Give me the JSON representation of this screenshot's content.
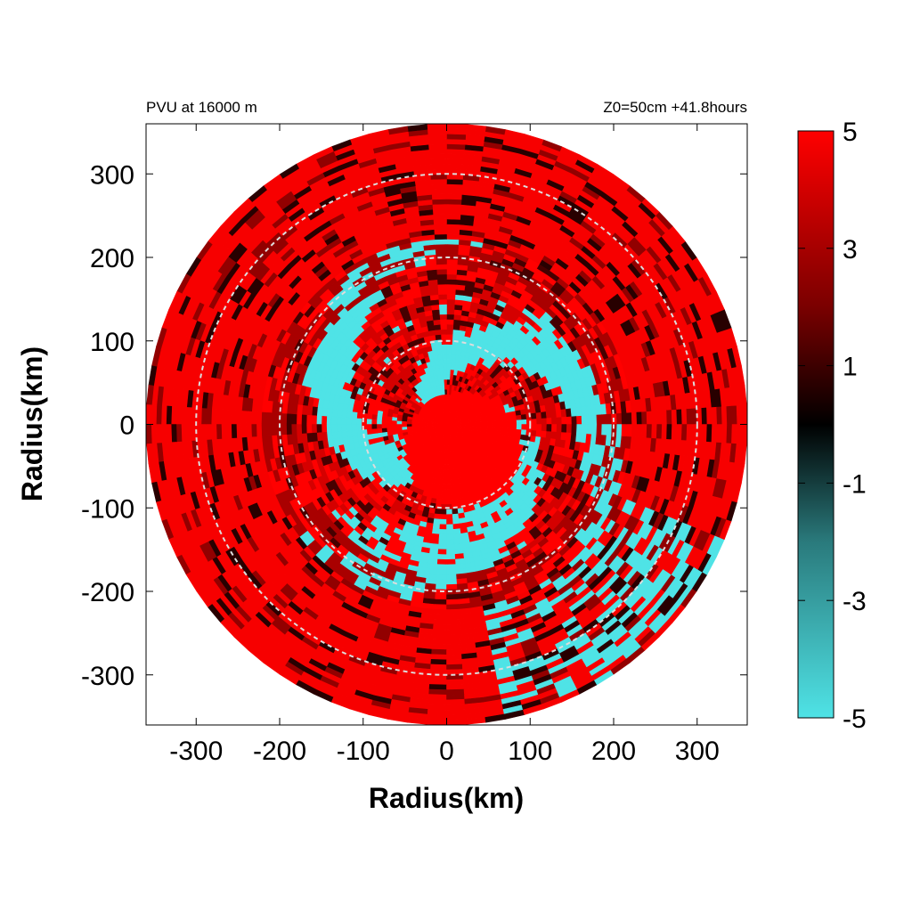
{
  "chart_data": {
    "type": "heatmap",
    "title_left": "PVU at 16000 m",
    "title_right": "Z0=50cm  +41.8hours",
    "xlabel": "Radius(km)",
    "ylabel": "Radius(km)",
    "xlim": [
      -360,
      360
    ],
    "ylim": [
      -360,
      360
    ],
    "x_ticks": [
      -300,
      -200,
      -100,
      0,
      100,
      200,
      300
    ],
    "y_ticks": [
      -300,
      -200,
      -100,
      0,
      100,
      200,
      300
    ],
    "domain_radius_km": 360,
    "reference_circles_km": [
      100,
      200,
      300
    ],
    "colorbar": {
      "min": -5,
      "max": 5,
      "ticks": [
        5,
        3,
        1,
        -1,
        -3,
        -5
      ],
      "colors": {
        "min": "#4fe3e6",
        "zero": "#000000",
        "max": "#ff0000"
      }
    },
    "pattern": {
      "outer_background_value": 4.5,
      "center_positive_core_radius_km": 70,
      "negative_band_inner_km": 20,
      "negative_band_outer_km": 220
    }
  }
}
